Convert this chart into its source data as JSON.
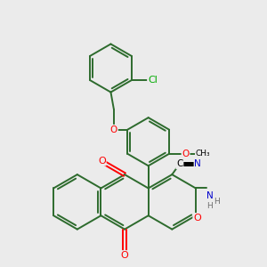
{
  "bg_color": "#ebebeb",
  "bond_color": "#2d6b2d",
  "bond_width": 1.4,
  "dbo": 0.055,
  "atom_colors": {
    "O": "#ff0000",
    "N": "#0000cd",
    "Cl": "#00aa00",
    "C": "#000000",
    "H": "#6e6e6e"
  },
  "fs": 7.5
}
